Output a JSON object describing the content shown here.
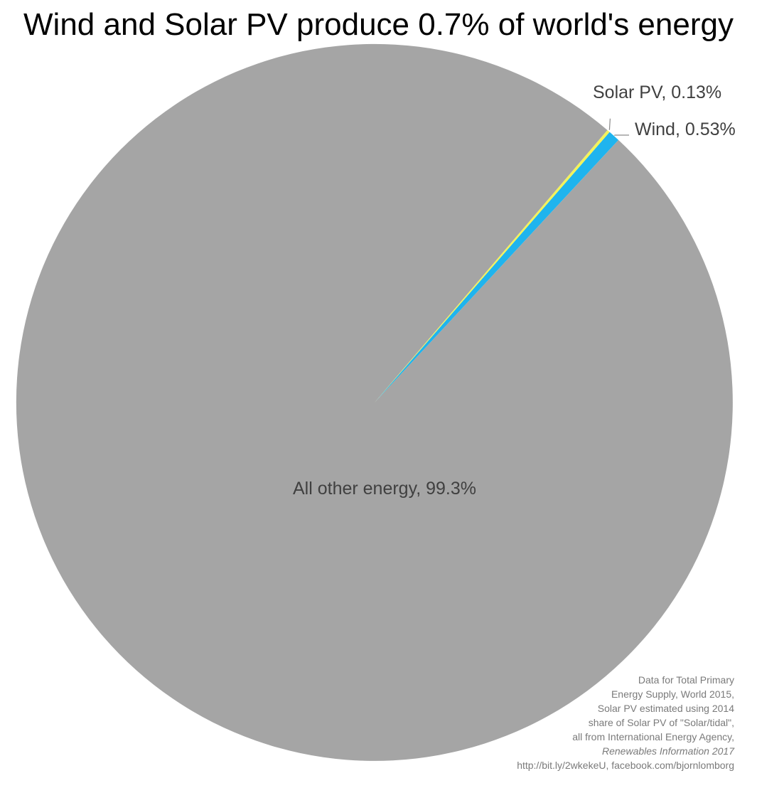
{
  "title": "Wind and Solar PV produce 0.7% of world's energy",
  "chart_data": {
    "type": "pie",
    "title": "Wind and Solar PV produce 0.7% of world's energy",
    "slices": [
      {
        "name": "Wind",
        "value": 0.53,
        "label": "Wind, 0.53%",
        "color": "#1FB4EE"
      },
      {
        "name": "All other energy",
        "value": 99.34,
        "label": "All other energy, 99.3%",
        "color": "#A5A5A5"
      },
      {
        "name": "Solar PV",
        "value": 0.13,
        "label": "Solar PV, 0.13%",
        "color": "#F3F35A"
      }
    ],
    "start_angle_deg": 41,
    "direction": "clockwise"
  },
  "source_note": {
    "lines": [
      "Data for Total Primary",
      "Energy Supply, World 2015,",
      "Solar PV estimated using 2014",
      "share of Solar PV of \"Solar/tidal\",",
      "all from International Energy Agency,"
    ],
    "italic_line": "Renewables Information 2017",
    "link_line": "http://bit.ly/2wkekeU, facebook.com/bjornlomborg"
  }
}
